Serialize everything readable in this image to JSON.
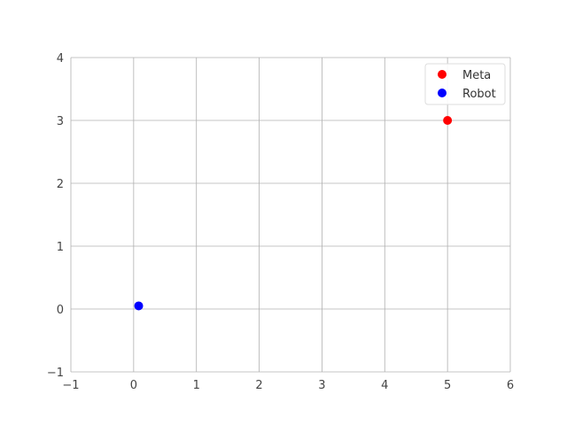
{
  "chart_data": {
    "type": "scatter",
    "title": "",
    "xlabel": "",
    "ylabel": "",
    "xlim": [
      -1,
      6
    ],
    "ylim": [
      -1,
      4
    ],
    "x_ticks": [
      -1,
      0,
      1,
      2,
      3,
      4,
      5,
      6
    ],
    "y_ticks": [
      -1,
      0,
      1,
      2,
      3,
      4
    ],
    "x_tick_labels": [
      "−1",
      "0",
      "1",
      "2",
      "3",
      "4",
      "5",
      "6"
    ],
    "y_tick_labels": [
      "−1",
      "0",
      "1",
      "2",
      "3",
      "4"
    ],
    "grid": true,
    "legend_position": "top-right",
    "series": [
      {
        "name": "Meta",
        "color": "#ff0000",
        "points": [
          {
            "x": 5.0,
            "y": 3.0
          }
        ]
      },
      {
        "name": "Robot",
        "color": "#0000ff",
        "points": [
          {
            "x": 0.08,
            "y": 0.05
          }
        ]
      }
    ]
  }
}
